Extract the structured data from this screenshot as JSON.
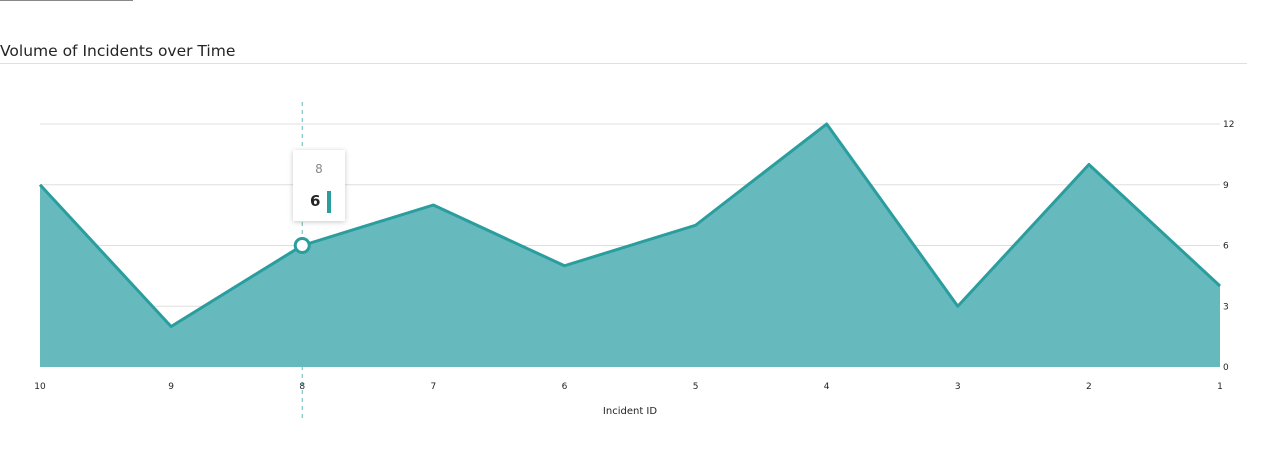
{
  "section": {
    "title": "Volume of Incidents over Time"
  },
  "tooltip": {
    "header": "8",
    "value": "6"
  },
  "colors": {
    "area_fill": "#66b9bd",
    "line": "#2a9d9e",
    "grid": "#e1dfdd",
    "accent": "#2a9d9e"
  },
  "chart_data": {
    "type": "area",
    "xlabel": "Incident ID",
    "ylabel": "",
    "categories": [
      "10",
      "9",
      "8",
      "7",
      "6",
      "5",
      "4",
      "3",
      "2",
      "1"
    ],
    "values": [
      9,
      2,
      6,
      8,
      5,
      7,
      12,
      3,
      10,
      4
    ],
    "yticks": [
      0,
      3,
      6,
      9,
      12
    ],
    "ylim": [
      0,
      12
    ],
    "y_axis_position": "right",
    "grid": true,
    "highlighted_category": "8"
  }
}
